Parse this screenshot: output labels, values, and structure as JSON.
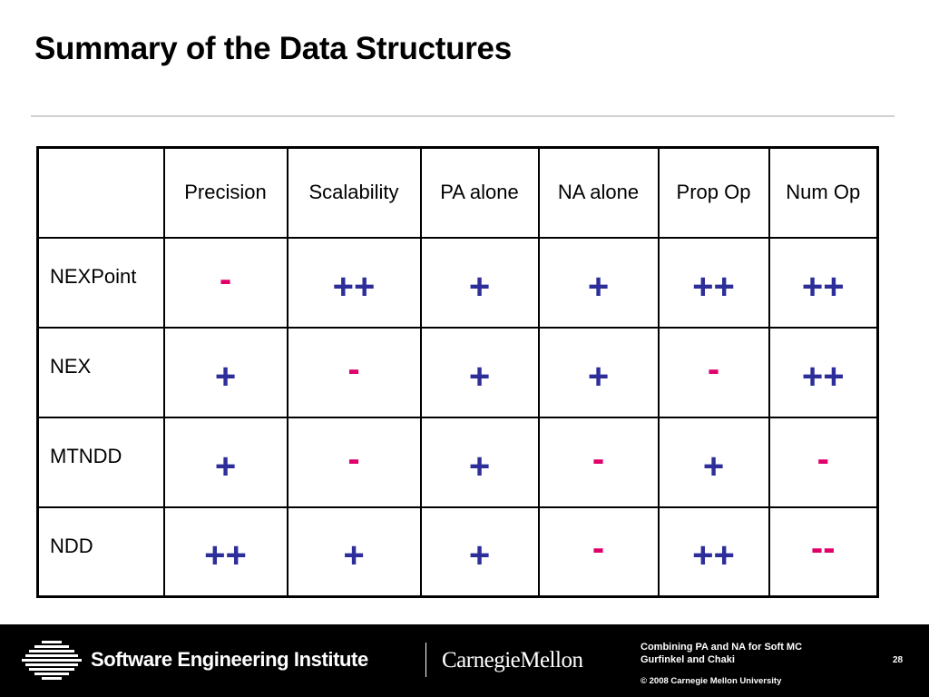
{
  "slide": {
    "title": "Summary of the Data Structures"
  },
  "table": {
    "columns": [
      "",
      "Precision",
      "Scalability",
      "PA alone",
      "NA alone",
      "Prop Op",
      "Num Op"
    ],
    "rows": [
      {
        "name": "NEXPoint",
        "cells": [
          "-",
          "++",
          "+",
          "+",
          "++",
          "++"
        ]
      },
      {
        "name": "NEX",
        "cells": [
          "+",
          "-",
          "+",
          "+",
          "-",
          "++"
        ]
      },
      {
        "name": "MTNDD",
        "cells": [
          "+",
          "-",
          "+",
          "-",
          "+",
          "-"
        ]
      },
      {
        "name": "NDD",
        "cells": [
          "++",
          "+",
          "+",
          "-",
          "++",
          "--"
        ]
      }
    ]
  },
  "colors": {
    "plus": "#2e2e9a",
    "minus": "#e0006a",
    "footer_bg": "#000000"
  },
  "footer": {
    "institute": "Software Engineering Institute",
    "university": "CarnegieMellon",
    "talk_title_line1": "Combining PA and NA for Soft MC",
    "talk_title_line2": "Gurfinkel and Chaki",
    "copyright": "© 2008 Carnegie Mellon University",
    "page_number": "28"
  }
}
